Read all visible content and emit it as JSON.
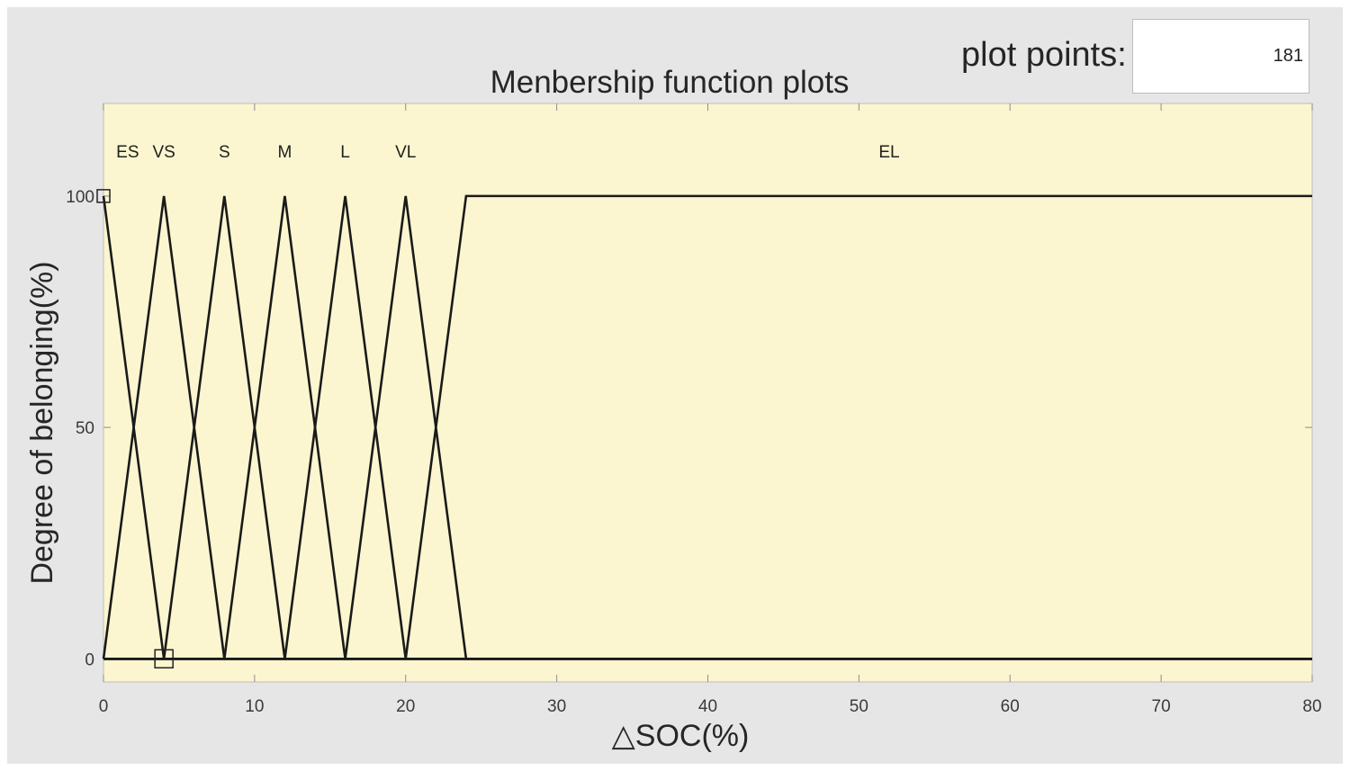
{
  "plot_points": {
    "label": "plot points:",
    "value": "181"
  },
  "chart_data": {
    "type": "line",
    "title": "Menbership function plots",
    "xlabel": "△SOC(%)",
    "ylabel": "Degree of belonging(%)",
    "xlim": [
      0,
      80
    ],
    "ylim": [
      -5,
      120
    ],
    "xticks": [
      0,
      10,
      20,
      30,
      40,
      50,
      60,
      70,
      80
    ],
    "yticks": [
      0,
      50,
      100
    ],
    "grid": false,
    "background_color": "#fbf6cf",
    "line_color": "#1a1a1a",
    "series": [
      {
        "name": "ES",
        "label_x": 1.6,
        "points": [
          [
            0,
            100
          ],
          [
            4,
            0
          ],
          [
            80,
            0
          ]
        ]
      },
      {
        "name": "VS",
        "label_x": 4,
        "points": [
          [
            0,
            0
          ],
          [
            4,
            100
          ],
          [
            8,
            0
          ],
          [
            80,
            0
          ]
        ]
      },
      {
        "name": "S",
        "label_x": 8,
        "points": [
          [
            0,
            0
          ],
          [
            4,
            0
          ],
          [
            8,
            100
          ],
          [
            12,
            0
          ],
          [
            80,
            0
          ]
        ]
      },
      {
        "name": "M",
        "label_x": 12,
        "points": [
          [
            0,
            0
          ],
          [
            8,
            0
          ],
          [
            12,
            100
          ],
          [
            16,
            0
          ],
          [
            80,
            0
          ]
        ]
      },
      {
        "name": "L",
        "label_x": 16,
        "points": [
          [
            0,
            0
          ],
          [
            12,
            0
          ],
          [
            16,
            100
          ],
          [
            20,
            0
          ],
          [
            80,
            0
          ]
        ]
      },
      {
        "name": "VL",
        "label_x": 20,
        "points": [
          [
            0,
            0
          ],
          [
            16,
            0
          ],
          [
            20,
            100
          ],
          [
            24,
            0
          ],
          [
            80,
            0
          ]
        ]
      },
      {
        "name": "EL",
        "label_x": 52,
        "points": [
          [
            0,
            0
          ],
          [
            20,
            0
          ],
          [
            24,
            100
          ],
          [
            80,
            100
          ]
        ]
      }
    ],
    "markers": [
      [
        0,
        100
      ],
      [
        4,
        0
      ]
    ]
  }
}
